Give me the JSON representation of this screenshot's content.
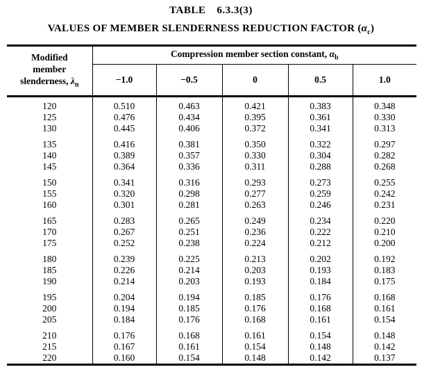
{
  "page": {
    "title_word": "TABLE",
    "title_number": "6.3.3(3)",
    "subtitle_text": "VALUES OF MEMBER SLENDERNESS REDUCTION FACTOR (",
    "subtitle_symbol": "α",
    "subtitle_subscript": "c",
    "subtitle_close": ")"
  },
  "table": {
    "left_header": {
      "line1": "Modified",
      "line2": "member",
      "line3_text": "slenderness, ",
      "line3_symbol": "λ",
      "line3_subscript": "n"
    },
    "group_header": {
      "text": "Compression member section constant, ",
      "symbol": "α",
      "subscript": "b"
    },
    "column_headers": [
      "−1.0",
      "−0.5",
      "0",
      "0.5",
      "1.0"
    ],
    "row_groups": [
      {
        "rows": [
          {
            "slenderness": "120",
            "values": [
              "0.510",
              "0.463",
              "0.421",
              "0.383",
              "0.348"
            ]
          },
          {
            "slenderness": "125",
            "values": [
              "0.476",
              "0.434",
              "0.395",
              "0.361",
              "0.330"
            ]
          },
          {
            "slenderness": "130",
            "values": [
              "0.445",
              "0.406",
              "0.372",
              "0.341",
              "0.313"
            ]
          }
        ]
      },
      {
        "rows": [
          {
            "slenderness": "135",
            "values": [
              "0.416",
              "0.381",
              "0.350",
              "0.322",
              "0.297"
            ]
          },
          {
            "slenderness": "140",
            "values": [
              "0.389",
              "0.357",
              "0.330",
              "0.304",
              "0.282"
            ]
          },
          {
            "slenderness": "145",
            "values": [
              "0.364",
              "0.336",
              "0.311",
              "0.288",
              "0.268"
            ]
          }
        ]
      },
      {
        "rows": [
          {
            "slenderness": "150",
            "values": [
              "0.341",
              "0.316",
              "0.293",
              "0.273",
              "0.255"
            ]
          },
          {
            "slenderness": "155",
            "values": [
              "0.320",
              "0.298",
              "0.277",
              "0.259",
              "0.242"
            ]
          },
          {
            "slenderness": "160",
            "values": [
              "0.301",
              "0.281",
              "0.263",
              "0.246",
              "0.231"
            ]
          }
        ]
      },
      {
        "rows": [
          {
            "slenderness": "165",
            "values": [
              "0.283",
              "0.265",
              "0.249",
              "0.234",
              "0.220"
            ]
          },
          {
            "slenderness": "170",
            "values": [
              "0.267",
              "0.251",
              "0.236",
              "0.222",
              "0.210"
            ]
          },
          {
            "slenderness": "175",
            "values": [
              "0.252",
              "0.238",
              "0.224",
              "0.212",
              "0.200"
            ]
          }
        ]
      },
      {
        "rows": [
          {
            "slenderness": "180",
            "values": [
              "0.239",
              "0.225",
              "0.213",
              "0.202",
              "0.192"
            ]
          },
          {
            "slenderness": "185",
            "values": [
              "0.226",
              "0.214",
              "0.203",
              "0.193",
              "0.183"
            ]
          },
          {
            "slenderness": "190",
            "values": [
              "0.214",
              "0.203",
              "0.193",
              "0.184",
              "0.175"
            ]
          }
        ]
      },
      {
        "rows": [
          {
            "slenderness": "195",
            "values": [
              "0.204",
              "0.194",
              "0.185",
              "0.176",
              "0.168"
            ]
          },
          {
            "slenderness": "200",
            "values": [
              "0.194",
              "0.185",
              "0.176",
              "0.168",
              "0.161"
            ]
          },
          {
            "slenderness": "205",
            "values": [
              "0.184",
              "0.176",
              "0.168",
              "0.161",
              "0.154"
            ]
          }
        ]
      },
      {
        "rows": [
          {
            "slenderness": "210",
            "values": [
              "0.176",
              "0.168",
              "0.161",
              "0.154",
              "0.148"
            ]
          },
          {
            "slenderness": "215",
            "values": [
              "0.167",
              "0.161",
              "0.154",
              "0.148",
              "0.142"
            ]
          },
          {
            "slenderness": "220",
            "values": [
              "0.160",
              "0.154",
              "0.148",
              "0.142",
              "0.137"
            ]
          }
        ]
      }
    ]
  }
}
